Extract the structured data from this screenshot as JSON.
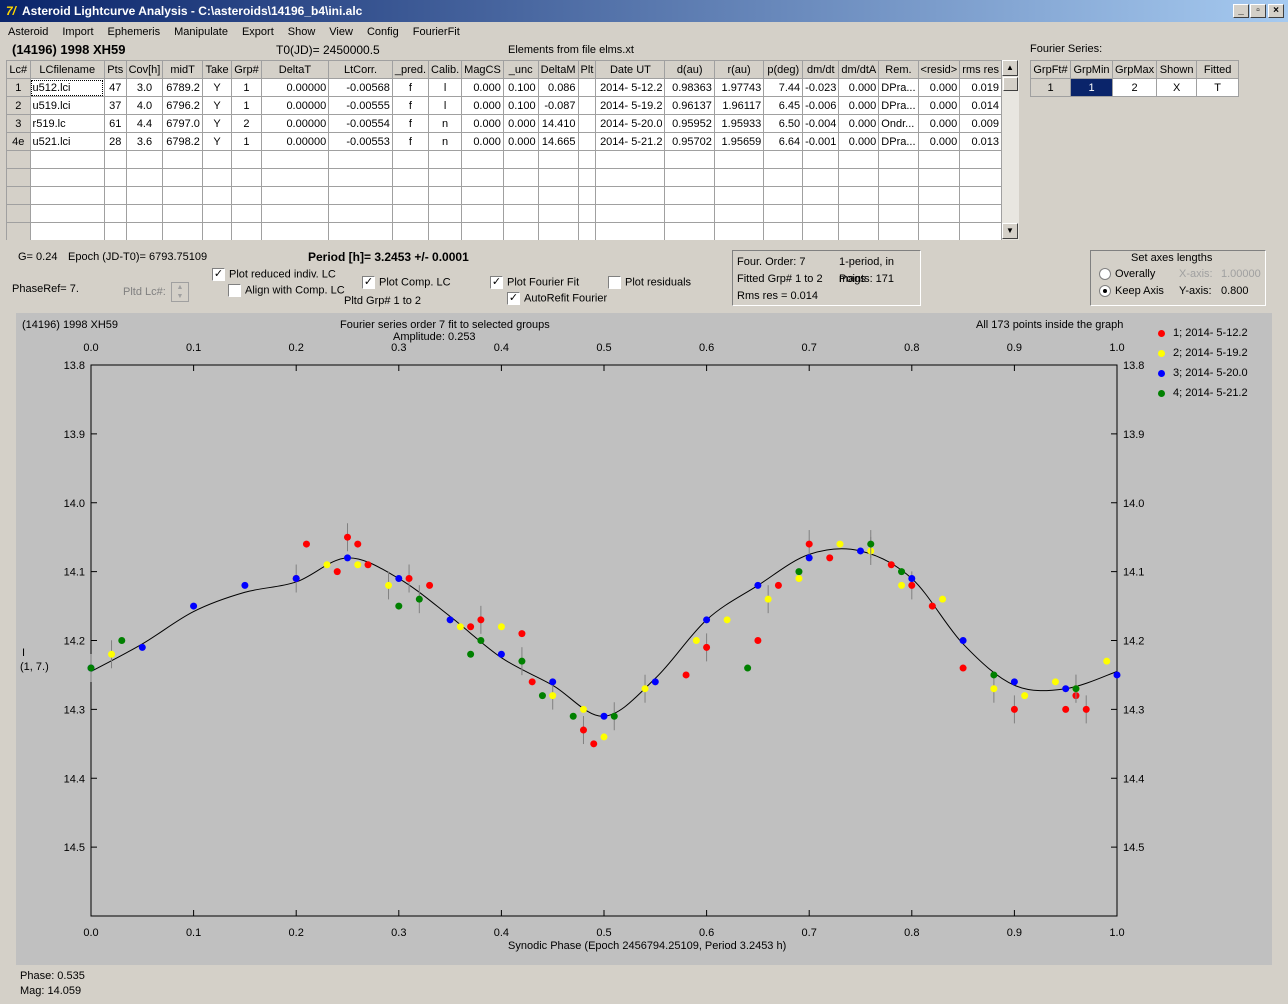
{
  "window": {
    "title": "Asteroid Lightcurve Analysis - C:\\asteroids\\14196_b4\\ini.alc",
    "app_icon": "7/"
  },
  "menu": [
    "Asteroid",
    "Import",
    "Ephemeris",
    "Manipulate",
    "Export",
    "Show",
    "View",
    "Config",
    "FourierFit"
  ],
  "header": {
    "object": "(14196) 1998 XH59",
    "t0": "T0(JD)= 2450000.5",
    "elements": "Elements from file elms.xt"
  },
  "lc_table": {
    "columns": [
      "Lc#",
      "LCfilename",
      "Pts",
      "Cov[h]",
      "midT",
      "Take",
      "Grp#",
      "DeltaT",
      "LtCorr.",
      "_pred.",
      "Calib.",
      "MagCS",
      "_unc",
      "DeltaM",
      "Plt",
      "Date UT",
      "d(au)",
      "r(au)",
      "p(deg)",
      "dm/dt",
      "dm/dtA",
      "Rem.",
      "<resid>",
      "rms res"
    ],
    "rows": [
      [
        "1",
        "u512.lci",
        "47",
        "3.0",
        "6789.2",
        "Y",
        "1",
        "0.00000",
        "-0.00568",
        "f",
        "l",
        "0.000",
        "0.100",
        "0.086",
        "",
        "2014- 5-12.2",
        "0.98363",
        "1.97743",
        "7.44",
        "-0.023",
        "0.000",
        "DPra...",
        "0.000",
        "0.019"
      ],
      [
        "2",
        "u519.lci",
        "37",
        "4.0",
        "6796.2",
        "Y",
        "1",
        "0.00000",
        "-0.00555",
        "f",
        "l",
        "0.000",
        "0.100",
        "-0.087",
        "",
        "2014- 5-19.2",
        "0.96137",
        "1.96117",
        "6.45",
        "-0.006",
        "0.000",
        "DPra...",
        "0.000",
        "0.014"
      ],
      [
        "3",
        "r519.lc",
        "61",
        "4.4",
        "6797.0",
        "Y",
        "2",
        "0.00000",
        "-0.00554",
        "f",
        "n",
        "0.000",
        "0.000",
        "14.410",
        "",
        "2014- 5-20.0",
        "0.95952",
        "1.95933",
        "6.50",
        "-0.004",
        "0.000",
        "Ondr...",
        "0.000",
        "0.009"
      ],
      [
        "4e",
        "u521.lci",
        "28",
        "3.6",
        "6798.2",
        "Y",
        "1",
        "0.00000",
        "-0.00553",
        "f",
        "n",
        "0.000",
        "0.000",
        "14.665",
        "",
        "2014- 5-21.2",
        "0.95702",
        "1.95659",
        "6.64",
        "-0.001",
        "0.000",
        "DPra...",
        "0.000",
        "0.013"
      ]
    ],
    "empty_rows": 5
  },
  "fourier_series": {
    "label": "Fourier Series:",
    "columns": [
      "GrpFt#",
      "GrpMin",
      "GrpMax",
      "Shown",
      "Fitted"
    ],
    "row": [
      "1",
      "1",
      "2",
      "X",
      "T"
    ]
  },
  "controls": {
    "g": "G= 0.24",
    "epoch": "Epoch (JD-T0)= 6793.75109",
    "period": "Period [h]= 3.2453 +/- 0.0001",
    "phaseref": "PhaseRef= 7.",
    "pltd_lc": "Pltd Lc#:",
    "plot_reduced": "Plot reduced indiv. LC",
    "align_comp": "Align with Comp. LC",
    "plot_comp": "Plot Comp. LC",
    "pltd_grp": "Pltd Grp#  1  to  2",
    "plot_fourier": "Plot Fourier Fit",
    "autorefit": "AutoRefit Fourier",
    "plot_residuals": "Plot residuals",
    "four_order": "Four. Order:  7",
    "one_period": "1-period, in mags",
    "fitted_grp": "Fitted Grp# 1 to 2",
    "points": "Points: 171",
    "rms": "Rms res    = 0.014",
    "axes_title": "Set axes lengths",
    "overally": "Overally",
    "keep_axis": "Keep Axis",
    "xaxis_label": "X-axis:",
    "xaxis_val": "1.00000",
    "yaxis_label": "Y-axis:",
    "yaxis_val": "0.800"
  },
  "plot": {
    "object": "(14196) 1998 XH59",
    "subtitle1": "Fourier series order 7 fit to selected groups",
    "subtitle2": "Amplitude: 0.253",
    "inside": "All 173 points inside the graph",
    "xlabel": "Synodic Phase (Epoch 2456794.25109, Period 3.2453 h)",
    "ylabel1": "I",
    "ylabel2": "(1, 7.)",
    "legend": [
      {
        "label": "1; 2014- 5-12.2",
        "color": "#ff0000"
      },
      {
        "label": "2; 2014- 5-19.2",
        "color": "#ffff00"
      },
      {
        "label": "3; 2014- 5-20.0",
        "color": "#0000ff"
      },
      {
        "label": "4; 2014- 5-21.2",
        "color": "#008000"
      }
    ]
  },
  "status": {
    "phase": "Phase:  0.535",
    "mag": "Mag:    14.059"
  },
  "chart_data": {
    "type": "scatter",
    "title": "Fourier series order 7 fit to selected groups",
    "xlabel": "Synodic Phase (Epoch 2456794.25109, Period 3.2453 h)",
    "ylabel": "I",
    "xlim": [
      0,
      1
    ],
    "ylim": [
      13.8,
      14.6
    ],
    "y_inverted": true,
    "x_ticks": [
      "0.0",
      "0.1",
      "0.2",
      "0.3",
      "0.4",
      "0.5",
      "0.6",
      "0.7",
      "0.8",
      "0.9",
      "1.0"
    ],
    "y_ticks": [
      "13.8",
      "13.9",
      "14.0",
      "14.1",
      "14.2",
      "14.3",
      "14.4",
      "14.5"
    ],
    "fit_curve": {
      "x": [
        0.0,
        0.05,
        0.1,
        0.15,
        0.2,
        0.25,
        0.3,
        0.35,
        0.4,
        0.45,
        0.5,
        0.55,
        0.6,
        0.65,
        0.7,
        0.75,
        0.8,
        0.85,
        0.9,
        0.95,
        1.0
      ],
      "y": [
        14.245,
        14.205,
        14.158,
        14.13,
        14.115,
        14.08,
        14.11,
        14.165,
        14.225,
        14.265,
        14.31,
        14.255,
        14.17,
        14.12,
        14.075,
        14.07,
        14.11,
        14.205,
        14.265,
        14.27,
        14.245
      ]
    },
    "series": [
      {
        "name": "1; 2014- 5-12.2",
        "x": [
          0.2,
          0.21,
          0.24,
          0.25,
          0.26,
          0.27,
          0.31,
          0.33,
          0.37,
          0.38,
          0.42,
          0.43,
          0.48,
          0.49,
          0.58,
          0.6,
          0.65,
          0.67,
          0.7,
          0.72,
          0.78,
          0.8,
          0.82,
          0.85,
          0.9,
          0.95,
          0.96,
          0.97
        ],
        "y": [
          14.11,
          14.06,
          14.1,
          14.05,
          14.06,
          14.09,
          14.11,
          14.12,
          14.18,
          14.17,
          14.19,
          14.26,
          14.33,
          14.35,
          14.25,
          14.21,
          14.2,
          14.12,
          14.06,
          14.08,
          14.09,
          14.12,
          14.15,
          14.24,
          14.3,
          14.3,
          14.28,
          14.3
        ]
      },
      {
        "name": "2; 2014- 5-19.2",
        "x": [
          0.02,
          0.23,
          0.26,
          0.29,
          0.36,
          0.4,
          0.45,
          0.48,
          0.5,
          0.54,
          0.59,
          0.62,
          0.66,
          0.69,
          0.73,
          0.76,
          0.79,
          0.83,
          0.88,
          0.91,
          0.94,
          0.96,
          0.99
        ],
        "y": [
          14.22,
          14.09,
          14.09,
          14.12,
          14.18,
          14.18,
          14.28,
          14.3,
          14.34,
          14.27,
          14.2,
          14.17,
          14.14,
          14.11,
          14.06,
          14.07,
          14.12,
          14.14,
          14.27,
          14.28,
          14.26,
          14.27,
          14.23
        ]
      },
      {
        "name": "3; 2014- 5-20.0",
        "x": [
          0.0,
          0.05,
          0.1,
          0.15,
          0.2,
          0.25,
          0.3,
          0.35,
          0.4,
          0.45,
          0.5,
          0.55,
          0.6,
          0.65,
          0.7,
          0.75,
          0.8,
          0.85,
          0.9,
          0.95,
          1.0
        ],
        "y": [
          14.24,
          14.21,
          14.15,
          14.12,
          14.11,
          14.08,
          14.11,
          14.17,
          14.22,
          14.26,
          14.31,
          14.26,
          14.17,
          14.12,
          14.08,
          14.07,
          14.11,
          14.2,
          14.26,
          14.27,
          14.25
        ]
      },
      {
        "name": "4; 2014- 5-21.2",
        "x": [
          0.0,
          0.03,
          0.3,
          0.32,
          0.37,
          0.38,
          0.42,
          0.44,
          0.47,
          0.51,
          0.64,
          0.69,
          0.76,
          0.79,
          0.88,
          0.96
        ],
        "y": [
          14.24,
          14.2,
          14.15,
          14.14,
          14.22,
          14.2,
          14.23,
          14.28,
          14.31,
          14.31,
          14.24,
          14.1,
          14.06,
          14.1,
          14.25,
          14.27
        ]
      }
    ]
  }
}
